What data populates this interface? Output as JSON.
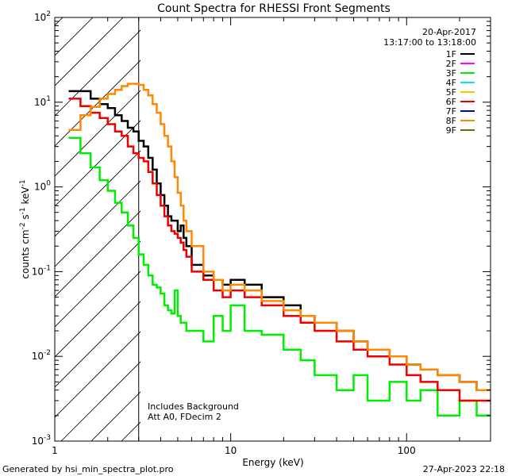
{
  "chart_data": {
    "type": "line",
    "title": "Count Spectra for RHESSI Front Segments",
    "xlabel": "Energy (keV)",
    "ylabel_main": "counts cm",
    "ylabel_exp1": "-2",
    "ylabel_mid1": " s",
    "ylabel_exp2": "-1",
    "ylabel_mid2": " keV",
    "ylabel_exp3": "-1",
    "x_scale": "log",
    "y_scale": "log",
    "xlim": [
      1,
      300
    ],
    "ylim": [
      0.001,
      100
    ],
    "x_ticks": [
      {
        "v": 10,
        "label": "10"
      },
      {
        "v": 100,
        "label": "100"
      }
    ],
    "x_tick_first": "1",
    "y_ticks": [
      {
        "v": 100,
        "base": "10",
        "exp": "2"
      },
      {
        "v": 10,
        "base": "10",
        "exp": "1"
      },
      {
        "v": 1,
        "base": "10",
        "exp": "0"
      },
      {
        "v": 0.1,
        "base": "10",
        "exp": "-1"
      },
      {
        "v": 0.01,
        "base": "10",
        "exp": "-2"
      },
      {
        "v": 0.001,
        "base": "10",
        "exp": "-3"
      }
    ],
    "date": "20-Apr-2017",
    "time_range": "13:17:00 to 13:18:00",
    "hatch_limit_kev": 3,
    "annotations": [
      "Includes Background",
      "Att A0, FDecim 2"
    ],
    "legend": [
      {
        "name": "1F",
        "color": "#000000"
      },
      {
        "name": "2F",
        "color": "#ff00ff"
      },
      {
        "name": "3F",
        "color": "#00ee00"
      },
      {
        "name": "4F",
        "color": "#00e5ff"
      },
      {
        "name": "5F",
        "color": "#ffc000"
      },
      {
        "name": "6F",
        "color": "#ee0000"
      },
      {
        "name": "7F",
        "color": "#0000cc"
      },
      {
        "name": "8F",
        "color": "#ff8800"
      },
      {
        "name": "9F",
        "color": "#6b6b00"
      }
    ],
    "series": [
      {
        "name": "1F",
        "color": "#000000",
        "energy_edges": [
          1.2,
          1.4,
          1.6,
          1.8,
          2.0,
          2.2,
          2.4,
          2.6,
          2.8,
          3.0,
          3.2,
          3.4,
          3.6,
          3.8,
          4.0,
          4.2,
          4.4,
          4.6,
          4.8,
          5.0,
          5.2,
          5.4,
          5.6,
          6.0,
          7.0,
          8.0,
          9.0,
          10.0,
          12.0,
          15.0,
          20.0,
          25.0,
          30.0,
          40.0,
          50.0,
          60.0,
          80.0,
          100.0,
          120.0,
          150.0,
          200.0,
          250.0,
          300.0
        ],
        "counts": [
          13.5,
          13.5,
          11.0,
          9.5,
          8.5,
          7.0,
          6.0,
          5.0,
          4.5,
          3.5,
          3.0,
          2.2,
          1.6,
          1.1,
          0.8,
          0.6,
          0.45,
          0.4,
          0.4,
          0.3,
          0.35,
          0.25,
          0.2,
          0.12,
          0.09,
          0.08,
          0.07,
          0.08,
          0.07,
          0.05,
          0.04,
          0.03,
          0.025,
          0.02,
          0.015,
          0.012,
          0.01,
          0.008,
          0.007,
          0.006,
          0.005,
          0.004
        ]
      },
      {
        "name": "3F",
        "color": "#00ee00",
        "energy_edges": [
          1.2,
          1.4,
          1.6,
          1.8,
          2.0,
          2.2,
          2.4,
          2.6,
          2.8,
          3.0,
          3.2,
          3.4,
          3.6,
          3.8,
          4.0,
          4.2,
          4.4,
          4.6,
          4.8,
          5.0,
          5.2,
          5.4,
          5.6,
          6.0,
          7.0,
          8.0,
          9.0,
          10.0,
          12.0,
          15.0,
          20.0,
          25.0,
          30.0,
          40.0,
          50.0,
          60.0,
          80.0,
          100.0,
          120.0,
          150.0,
          200.0,
          250.0,
          300.0
        ],
        "counts": [
          3.8,
          2.5,
          1.7,
          1.2,
          0.9,
          0.65,
          0.5,
          0.35,
          0.25,
          0.16,
          0.12,
          0.09,
          0.07,
          0.065,
          0.055,
          0.04,
          0.035,
          0.032,
          0.06,
          0.03,
          0.025,
          0.025,
          0.02,
          0.02,
          0.015,
          0.03,
          0.02,
          0.04,
          0.02,
          0.018,
          0.012,
          0.009,
          0.006,
          0.004,
          0.006,
          0.003,
          0.005,
          0.003,
          0.004,
          0.002,
          0.003,
          0.002
        ]
      },
      {
        "name": "6F",
        "color": "#ee0000",
        "energy_edges": [
          1.2,
          1.4,
          1.6,
          1.8,
          2.0,
          2.2,
          2.4,
          2.6,
          2.8,
          3.0,
          3.2,
          3.4,
          3.6,
          3.8,
          4.0,
          4.2,
          4.4,
          4.6,
          4.8,
          5.0,
          5.2,
          5.4,
          5.6,
          6.0,
          7.0,
          8.0,
          9.0,
          10.0,
          12.0,
          15.0,
          20.0,
          25.0,
          30.0,
          40.0,
          50.0,
          60.0,
          80.0,
          100.0,
          120.0,
          150.0,
          200.0,
          250.0,
          300.0
        ],
        "counts": [
          11.0,
          9.0,
          7.5,
          6.5,
          5.5,
          4.5,
          4.0,
          3.0,
          2.5,
          2.2,
          2.0,
          1.5,
          1.1,
          0.8,
          0.6,
          0.45,
          0.35,
          0.3,
          0.28,
          0.25,
          0.22,
          0.18,
          0.15,
          0.1,
          0.08,
          0.06,
          0.05,
          0.06,
          0.05,
          0.04,
          0.03,
          0.025,
          0.02,
          0.015,
          0.012,
          0.01,
          0.008,
          0.006,
          0.005,
          0.004,
          0.003,
          0.003
        ]
      },
      {
        "name": "8F",
        "color": "#ff8800",
        "energy_edges": [
          1.2,
          1.4,
          1.6,
          1.8,
          2.0,
          2.2,
          2.4,
          2.6,
          2.8,
          3.0,
          3.2,
          3.4,
          3.6,
          3.8,
          4.0,
          4.2,
          4.4,
          4.6,
          4.8,
          5.0,
          5.2,
          5.4,
          5.6,
          6.0,
          7.0,
          8.0,
          9.0,
          10.0,
          12.0,
          15.0,
          20.0,
          25.0,
          30.0,
          40.0,
          50.0,
          60.0,
          80.0,
          100.0,
          120.0,
          150.0,
          200.0,
          250.0,
          300.0
        ],
        "counts": [
          4.7,
          7.0,
          8.8,
          11.0,
          12.5,
          14.0,
          15.5,
          16.5,
          16.5,
          16.0,
          14.0,
          12.0,
          9.5,
          7.5,
          5.5,
          4.0,
          3.0,
          2.0,
          1.3,
          0.85,
          0.6,
          0.4,
          0.3,
          0.2,
          0.1,
          0.08,
          0.06,
          0.07,
          0.06,
          0.045,
          0.035,
          0.03,
          0.025,
          0.02,
          0.015,
          0.012,
          0.01,
          0.008,
          0.007,
          0.006,
          0.005,
          0.004
        ]
      }
    ]
  },
  "footer": {
    "generator": "Generated by hsi_min_spectra_plot.pro",
    "timestamp": "27-Apr-2023 22:18"
  }
}
